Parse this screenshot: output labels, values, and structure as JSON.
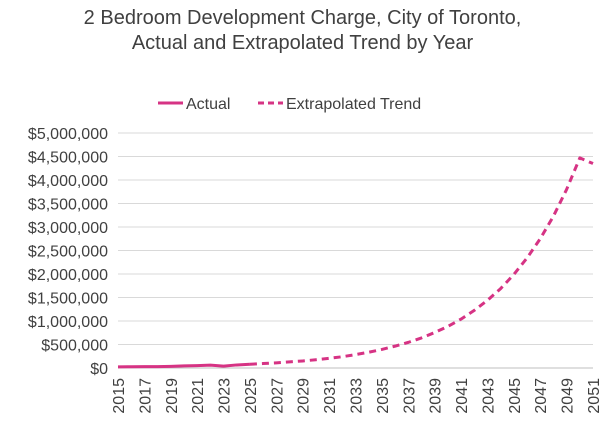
{
  "chart_data": {
    "type": "line",
    "title": "2 Bedroom Development Charge, City of Toronto, Actual and Extrapolated Trend by Year",
    "xlabel": "",
    "ylabel": "",
    "ylim": [
      0,
      5000000
    ],
    "y_ticks": [
      0,
      500000,
      1000000,
      1500000,
      2000000,
      2500000,
      3000000,
      3500000,
      4000000,
      4500000,
      5000000
    ],
    "y_tick_labels": [
      "$0",
      "$500,000",
      "$1,000,000",
      "$1,500,000",
      "$2,000,000",
      "$2,500,000",
      "$3,000,000",
      "$3,500,000",
      "$4,000,000",
      "$4,500,000",
      "$5,000,000"
    ],
    "x_categories": [
      2015,
      2016,
      2017,
      2018,
      2019,
      2020,
      2021,
      2022,
      2023,
      2024,
      2025,
      2026,
      2027,
      2028,
      2029,
      2030,
      2031,
      2032,
      2033,
      2034,
      2035,
      2036,
      2037,
      2038,
      2039,
      2040,
      2041,
      2042,
      2043,
      2044,
      2045,
      2046,
      2047,
      2048,
      2049,
      2050,
      2051
    ],
    "x_tick_labels": [
      "2015",
      "2017",
      "2019",
      "2021",
      "2023",
      "2025",
      "2027",
      "2029",
      "2031",
      "2033",
      "2035",
      "2037",
      "2039",
      "2041",
      "2043",
      "2045",
      "2047",
      "2049",
      "2051"
    ],
    "grid": true,
    "legend_position": "top",
    "color": "#D63384",
    "series": [
      {
        "name": "Actual",
        "style": "solid",
        "x": [
          2015,
          2016,
          2017,
          2018,
          2019,
          2020,
          2021,
          2022,
          2023,
          2024,
          2025
        ],
        "y": [
          25000,
          27000,
          28000,
          29000,
          35000,
          45000,
          50000,
          60000,
          40000,
          65000,
          80000
        ]
      },
      {
        "name": "Extrapolated Trend",
        "style": "dashed",
        "x": [
          2025,
          2026,
          2027,
          2028,
          2029,
          2030,
          2031,
          2032,
          2033,
          2034,
          2035,
          2036,
          2037,
          2038,
          2039,
          2040,
          2041,
          2042,
          2043,
          2044,
          2045,
          2046,
          2047,
          2048,
          2049,
          2050,
          2051
        ],
        "y": [
          80000,
          95000,
          110000,
          130000,
          150000,
          175000,
          205000,
          240000,
          285000,
          335000,
          395000,
          465000,
          545000,
          640000,
          755000,
          885000,
          1040000,
          1225000,
          1440000,
          1690000,
          1990000,
          2340000,
          2750000,
          3230000,
          3800000,
          4470000,
          4350000
        ]
      }
    ]
  }
}
